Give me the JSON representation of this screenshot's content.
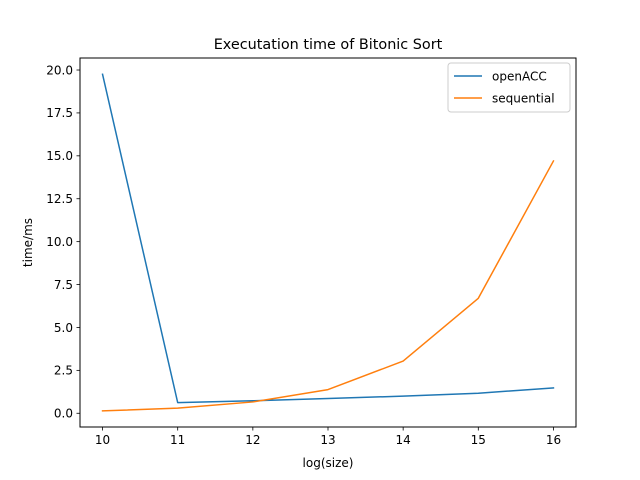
{
  "chart_data": {
    "type": "line",
    "title": "Executation time of Bitonic Sort",
    "xlabel": "log(size)",
    "ylabel": "time/ms",
    "x": [
      10,
      11,
      12,
      13,
      14,
      15,
      16
    ],
    "xlim": [
      9.7,
      16.3
    ],
    "ylim": [
      -0.8,
      20.7
    ],
    "xticks": [
      "10",
      "11",
      "12",
      "13",
      "14",
      "15",
      "16"
    ],
    "yticks": [
      "0.0",
      "2.5",
      "5.0",
      "7.5",
      "10.0",
      "12.5",
      "15.0",
      "17.5",
      "20.0"
    ],
    "grid": false,
    "legend_position": "top-right",
    "series": [
      {
        "name": "openACC",
        "color": "#1f77b4",
        "values": [
          19.75,
          0.62,
          0.73,
          0.86,
          1.0,
          1.17,
          1.48
        ]
      },
      {
        "name": "sequential",
        "color": "#ff7f0e",
        "values": [
          0.14,
          0.3,
          0.66,
          1.38,
          3.04,
          6.7,
          14.7
        ]
      }
    ]
  }
}
